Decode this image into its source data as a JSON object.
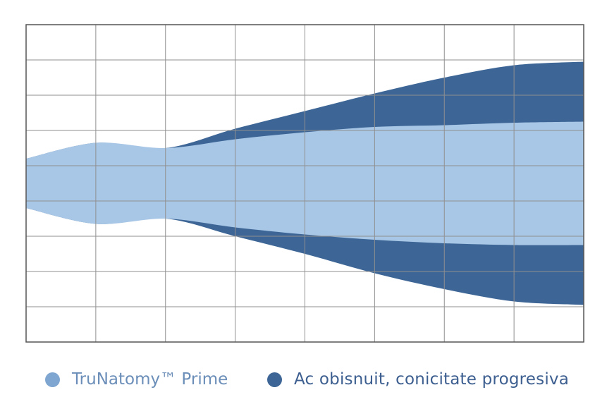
{
  "chart_data": {
    "type": "area",
    "title": "",
    "xlabel": "",
    "ylabel": "",
    "xlim": [
      0,
      8
    ],
    "ylim": [
      -4.5,
      4.5
    ],
    "grid": true,
    "grid_x_divisions": 8,
    "grid_y_divisions": 9,
    "legend_position": "bottom",
    "x": [
      0,
      1,
      2,
      3,
      4,
      5,
      6,
      7,
      8
    ],
    "series": [
      {
        "name": "Ac obisnuit, conicitate progresiva",
        "color": "#3d6696",
        "upper": [
          0.7,
          1.15,
          1.0,
          1.55,
          2.05,
          2.55,
          3.0,
          3.35,
          3.45
        ],
        "lower": [
          -0.7,
          -1.15,
          -1.0,
          -1.5,
          -2.0,
          -2.55,
          -3.0,
          -3.35,
          -3.45
        ]
      },
      {
        "name": "TruNatomy™ Prime",
        "color": "#a8c7e6",
        "upper": [
          0.7,
          1.15,
          1.0,
          1.25,
          1.45,
          1.6,
          1.65,
          1.72,
          1.75
        ],
        "lower": [
          -0.7,
          -1.15,
          -1.0,
          -1.25,
          -1.45,
          -1.6,
          -1.7,
          -1.75,
          -1.75
        ]
      }
    ]
  },
  "legend": {
    "items": [
      {
        "label": "TruNatomy™ Prime",
        "color": "#7fa6d0"
      },
      {
        "label": "Ac obisnuit, conicitate progresiva",
        "color": "#3d6696"
      }
    ]
  }
}
